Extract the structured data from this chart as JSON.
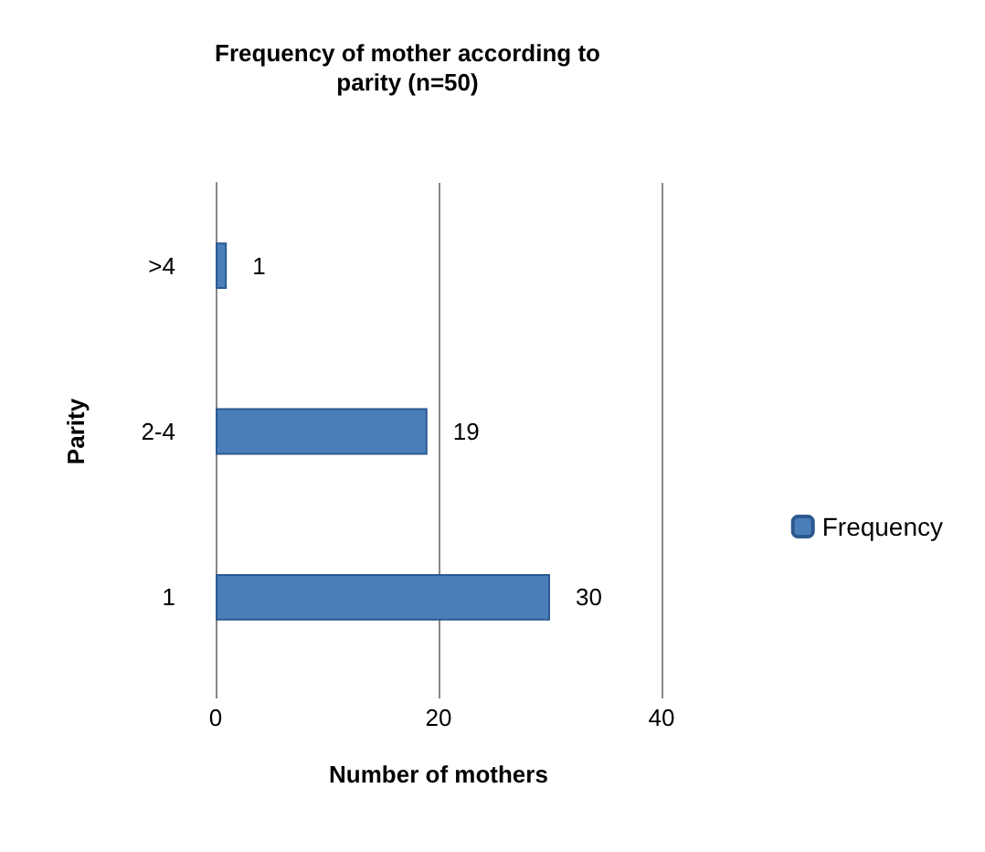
{
  "chart_data": {
    "type": "bar",
    "orientation": "horizontal",
    "title": "Frequency of mother according to\nparity (n=50)",
    "xlabel": "Number of mothers",
    "ylabel": "Parity",
    "categories": [
      ">4",
      "2-4",
      "1"
    ],
    "series": [
      {
        "name": "Frequency",
        "color": "#4a7ebb",
        "values": [
          1,
          19,
          30
        ]
      }
    ],
    "xlim": [
      0,
      40
    ],
    "xticks": [
      0,
      20,
      40
    ],
    "grid": "x",
    "legend": "right",
    "data_labels": true
  }
}
